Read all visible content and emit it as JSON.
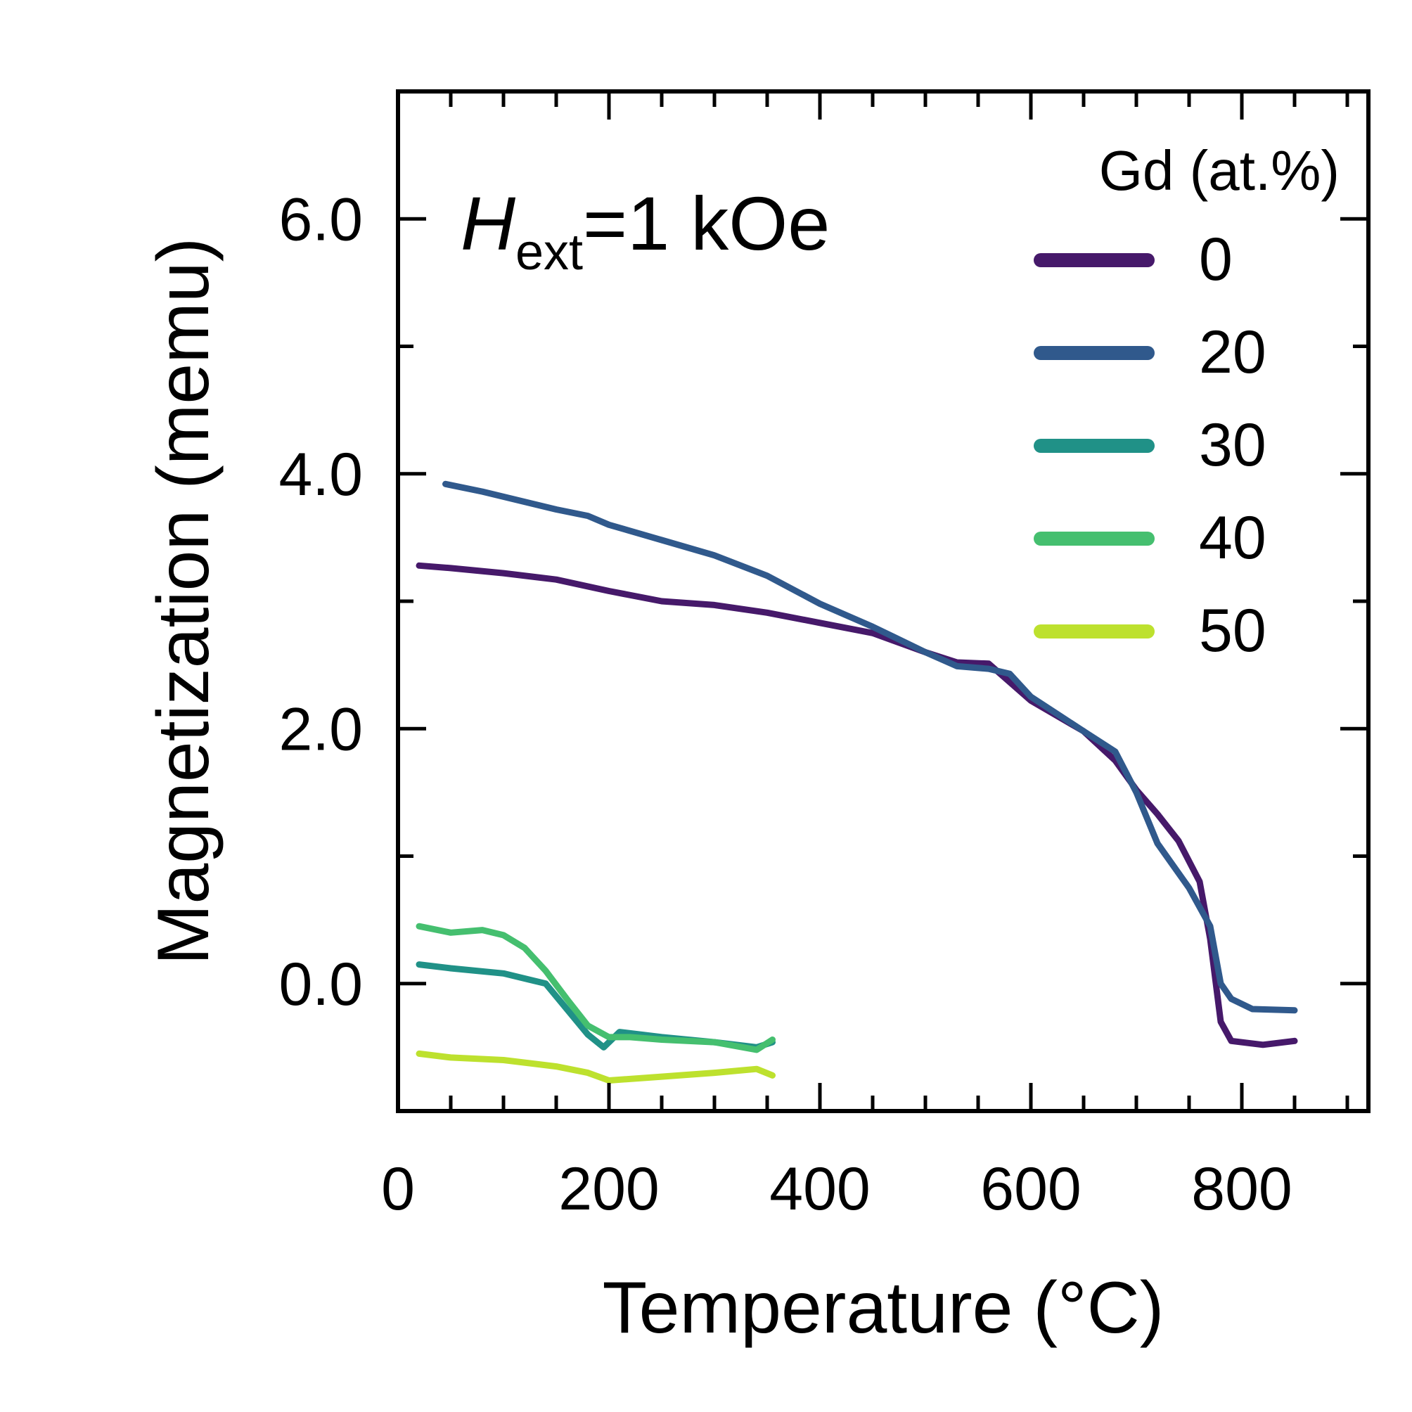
{
  "chart_data": {
    "type": "line",
    "xlabel": "Temperature (°C)",
    "ylabel": "Magnetization (memu)",
    "xlim": [
      0,
      920
    ],
    "ylim": [
      -1.0,
      7.0
    ],
    "x_ticks": [
      0,
      200,
      400,
      600,
      800
    ],
    "x_tick_labels": [
      "0",
      "200",
      "400",
      "600",
      "800"
    ],
    "y_ticks": [
      0,
      2,
      4,
      6
    ],
    "y_tick_labels": [
      "0.0",
      "2.0",
      "4.0",
      "6.0"
    ],
    "annotation": {
      "main": "H",
      "sub": "ext",
      "rest": "=1 kOe"
    },
    "legend": {
      "title": "Gd (at.%)",
      "placement": "top-right"
    },
    "grid": false,
    "series": [
      {
        "name": "0",
        "color": "#46196a",
        "x": [
          20,
          50,
          100,
          150,
          200,
          250,
          300,
          350,
          400,
          450,
          500,
          530,
          560,
          600,
          650,
          680,
          700,
          720,
          740,
          760,
          770,
          780,
          790,
          820,
          850
        ],
        "y": [
          3.28,
          3.26,
          3.22,
          3.17,
          3.08,
          3.0,
          2.97,
          2.91,
          2.83,
          2.75,
          2.6,
          2.52,
          2.51,
          2.22,
          1.98,
          1.75,
          1.52,
          1.33,
          1.12,
          0.8,
          0.35,
          -0.3,
          -0.45,
          -0.48,
          -0.45
        ]
      },
      {
        "name": "20",
        "color": "#30598c",
        "x": [
          45,
          80,
          120,
          150,
          180,
          200,
          250,
          300,
          350,
          400,
          450,
          500,
          530,
          560,
          580,
          600,
          650,
          680,
          700,
          720,
          750,
          770,
          780,
          790,
          810,
          850
        ],
        "y": [
          3.92,
          3.86,
          3.78,
          3.72,
          3.67,
          3.6,
          3.48,
          3.36,
          3.2,
          2.98,
          2.8,
          2.6,
          2.49,
          2.47,
          2.43,
          2.25,
          1.98,
          1.82,
          1.5,
          1.1,
          0.75,
          0.45,
          0.0,
          -0.12,
          -0.2,
          -0.21
        ]
      },
      {
        "name": "30",
        "color": "#209187",
        "x": [
          20,
          50,
          100,
          140,
          160,
          180,
          195,
          210,
          250,
          300,
          340,
          355
        ],
        "y": [
          0.15,
          0.12,
          0.08,
          0.0,
          -0.2,
          -0.4,
          -0.5,
          -0.38,
          -0.42,
          -0.46,
          -0.5,
          -0.46
        ]
      },
      {
        "name": "40",
        "color": "#45bf6f",
        "x": [
          20,
          50,
          80,
          100,
          120,
          140,
          160,
          180,
          200,
          220,
          250,
          300,
          340,
          355
        ],
        "y": [
          0.45,
          0.4,
          0.42,
          0.38,
          0.28,
          0.1,
          -0.12,
          -0.33,
          -0.42,
          -0.42,
          -0.44,
          -0.46,
          -0.52,
          -0.44
        ]
      },
      {
        "name": "50",
        "color": "#bde12e",
        "x": [
          20,
          50,
          100,
          150,
          180,
          200,
          250,
          300,
          340,
          355
        ],
        "y": [
          -0.55,
          -0.58,
          -0.6,
          -0.65,
          -0.7,
          -0.76,
          -0.73,
          -0.7,
          -0.67,
          -0.72
        ]
      }
    ]
  }
}
